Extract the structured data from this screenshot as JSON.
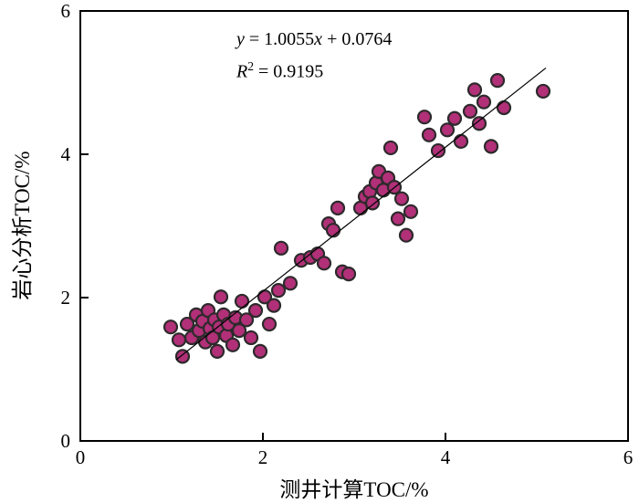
{
  "chart_data": {
    "type": "scatter",
    "title": "",
    "xlabel": "测井计算TOC/%",
    "ylabel": "岩心分析TOC/%",
    "xlim": [
      0,
      6
    ],
    "ylim": [
      0,
      6
    ],
    "xticks": [
      0,
      2,
      4,
      6
    ],
    "yticks": [
      0,
      2,
      4,
      6
    ],
    "grid": false,
    "legend": "none",
    "annotation": {
      "equation_full": "y = 1.0055x + 0.0764",
      "r_squared_full": "R² = 0.9195",
      "eq_y": "y",
      "eq_mid": " = 1.0055",
      "eq_x": "x",
      "eq_end": " + 0.0764",
      "r_var": "R",
      "r_sup": "2",
      "r_rest": " = 0.9195"
    },
    "regression": {
      "slope": 1.0055,
      "intercept": 0.0764,
      "x_start": 1.05,
      "x_end": 5.1,
      "line_color": "#000000"
    },
    "marker": {
      "fill": "#b13078",
      "stroke": "#2d2a2b",
      "radius": 7
    },
    "points": [
      [
        0.99,
        1.59
      ],
      [
        1.08,
        1.41
      ],
      [
        1.12,
        1.18
      ],
      [
        1.17,
        1.63
      ],
      [
        1.22,
        1.44
      ],
      [
        1.27,
        1.76
      ],
      [
        1.3,
        1.54
      ],
      [
        1.34,
        1.67
      ],
      [
        1.37,
        1.38
      ],
      [
        1.4,
        1.82
      ],
      [
        1.42,
        1.57
      ],
      [
        1.45,
        1.44
      ],
      [
        1.47,
        1.69
      ],
      [
        1.5,
        1.25
      ],
      [
        1.52,
        1.59
      ],
      [
        1.54,
        2.01
      ],
      [
        1.57,
        1.76
      ],
      [
        1.6,
        1.47
      ],
      [
        1.62,
        1.63
      ],
      [
        1.67,
        1.34
      ],
      [
        1.7,
        1.72
      ],
      [
        1.74,
        1.54
      ],
      [
        1.77,
        1.95
      ],
      [
        1.82,
        1.69
      ],
      [
        1.87,
        1.44
      ],
      [
        1.92,
        1.82
      ],
      [
        1.97,
        1.25
      ],
      [
        2.02,
        2.01
      ],
      [
        2.07,
        1.63
      ],
      [
        2.12,
        1.89
      ],
      [
        2.17,
        2.1
      ],
      [
        2.2,
        2.69
      ],
      [
        2.3,
        2.2
      ],
      [
        2.42,
        2.52
      ],
      [
        2.52,
        2.56
      ],
      [
        2.6,
        2.61
      ],
      [
        2.67,
        2.48
      ],
      [
        2.72,
        3.03
      ],
      [
        2.77,
        2.94
      ],
      [
        2.82,
        3.25
      ],
      [
        2.87,
        2.36
      ],
      [
        2.94,
        2.33
      ],
      [
        3.07,
        3.25
      ],
      [
        3.12,
        3.41
      ],
      [
        3.17,
        3.48
      ],
      [
        3.2,
        3.32
      ],
      [
        3.24,
        3.6
      ],
      [
        3.27,
        3.76
      ],
      [
        3.32,
        3.5
      ],
      [
        3.37,
        3.67
      ],
      [
        3.4,
        4.09
      ],
      [
        3.44,
        3.54
      ],
      [
        3.48,
        3.1
      ],
      [
        3.52,
        3.38
      ],
      [
        3.57,
        2.87
      ],
      [
        3.62,
        3.2
      ],
      [
        3.77,
        4.52
      ],
      [
        3.82,
        4.27
      ],
      [
        3.92,
        4.05
      ],
      [
        4.02,
        4.34
      ],
      [
        4.1,
        4.5
      ],
      [
        4.17,
        4.18
      ],
      [
        4.27,
        4.6
      ],
      [
        4.32,
        4.9
      ],
      [
        4.37,
        4.43
      ],
      [
        4.42,
        4.73
      ],
      [
        4.5,
        4.11
      ],
      [
        4.57,
        5.03
      ],
      [
        4.64,
        4.65
      ],
      [
        5.07,
        4.88
      ]
    ]
  }
}
